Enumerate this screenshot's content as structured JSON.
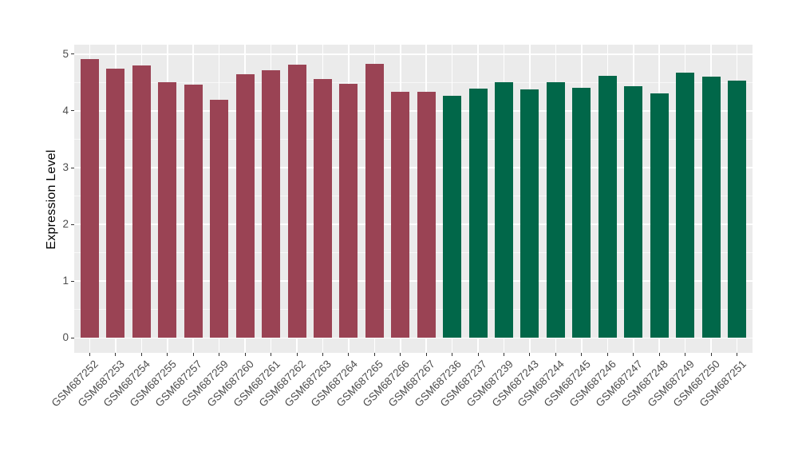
{
  "chart_data": {
    "type": "bar",
    "title": "",
    "xlabel": "",
    "ylabel": "Expression Level",
    "ylim": [
      0,
      5.17
    ],
    "yticks": [
      0,
      1,
      2,
      3,
      4,
      5
    ],
    "grid": "gray panel with white major gridlines at integers, white minor gridlines at half-integers, vertical white gridlines at each category center",
    "legend_position": "none",
    "x_tick_label_angle_deg": 45,
    "categories": [
      "GSM687252",
      "GSM687253",
      "GSM687254",
      "GSM687255",
      "GSM687257",
      "GSM687259",
      "GSM687260",
      "GSM687261",
      "GSM687262",
      "GSM687263",
      "GSM687264",
      "GSM687265",
      "GSM687266",
      "GSM687267",
      "GSM687236",
      "GSM687237",
      "GSM687239",
      "GSM687243",
      "GSM687244",
      "GSM687245",
      "GSM687246",
      "GSM687247",
      "GSM687248",
      "GSM687249",
      "GSM687250",
      "GSM687251"
    ],
    "values": [
      4.91,
      4.74,
      4.8,
      4.5,
      4.46,
      4.2,
      4.65,
      4.72,
      4.81,
      4.56,
      4.48,
      4.83,
      4.33,
      4.33,
      4.26,
      4.39,
      4.51,
      4.38,
      4.5,
      4.4,
      4.62,
      4.43,
      4.31,
      4.68,
      4.6,
      4.53
    ],
    "groups": [
      {
        "name": "maroon-group",
        "color": "#9A4354",
        "first_category": "GSM687252",
        "last_category": "GSM687267",
        "count": 14
      },
      {
        "name": "green-group",
        "color": "#016749",
        "first_category": "GSM687236",
        "last_category": "GSM687251",
        "count": 12
      }
    ],
    "bar_colors": [
      "#9A4354",
      "#9A4354",
      "#9A4354",
      "#9A4354",
      "#9A4354",
      "#9A4354",
      "#9A4354",
      "#9A4354",
      "#9A4354",
      "#9A4354",
      "#9A4354",
      "#9A4354",
      "#9A4354",
      "#9A4354",
      "#016749",
      "#016749",
      "#016749",
      "#016749",
      "#016749",
      "#016749",
      "#016749",
      "#016749",
      "#016749",
      "#016749",
      "#016749",
      "#016749"
    ]
  },
  "style": {
    "page_bg": "#FFFFFF",
    "panel_bg": "#EBEBEB",
    "grid_major_color": "#FFFFFF",
    "grid_minor_color": "rgba(255,255,255,0.65)",
    "tick_color": "#333333",
    "axis_text_color": "#4D4D4D",
    "axis_title_color": "#000000"
  }
}
